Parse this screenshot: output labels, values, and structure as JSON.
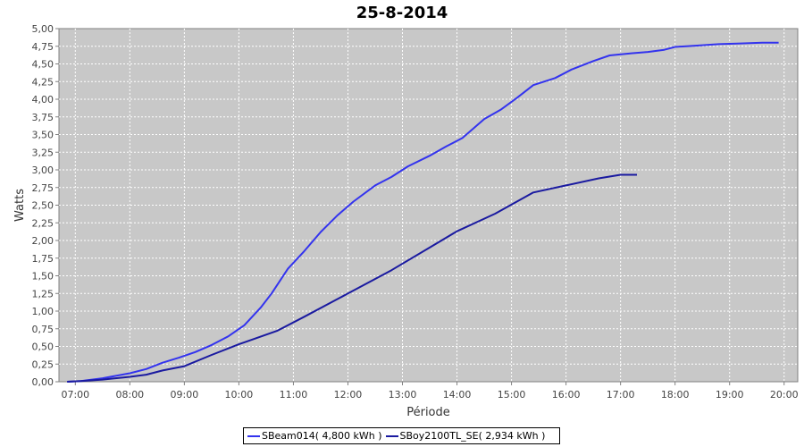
{
  "chart_data": {
    "type": "line",
    "title": "25-8-2014",
    "xlabel": "Période",
    "ylabel": "Watts",
    "x_ticks": [
      "07:00",
      "08:00",
      "09:00",
      "10:00",
      "11:00",
      "12:00",
      "13:00",
      "14:00",
      "15:00",
      "16:00",
      "17:00",
      "18:00",
      "19:00",
      "20:00"
    ],
    "y_ticks": [
      "0,00",
      "0,25",
      "0,50",
      "0,75",
      "1,00",
      "1,25",
      "1,50",
      "1,75",
      "2,00",
      "2,25",
      "2,50",
      "2,75",
      "3,00",
      "3,25",
      "3,50",
      "3,75",
      "4,00",
      "4,25",
      "4,50",
      "4,75",
      "5,00"
    ],
    "xlim_hours": [
      6.7,
      20.25
    ],
    "ylim": [
      0,
      5
    ],
    "grid": true,
    "legend_position": "bottom",
    "plot_background": "#c8c8c8",
    "series": [
      {
        "name": "SBeam014",
        "legend_label": "SBeam014( 4,800 kWh )",
        "color": "#3333ee",
        "x": [
          6.85,
          7.1,
          7.5,
          8.0,
          8.3,
          8.6,
          8.9,
          9.2,
          9.5,
          9.8,
          10.1,
          10.4,
          10.6,
          10.9,
          11.2,
          11.5,
          11.8,
          12.1,
          12.5,
          12.8,
          13.1,
          13.5,
          13.8,
          14.1,
          14.5,
          14.8,
          15.1,
          15.4,
          15.8,
          16.1,
          16.5,
          16.8,
          17.2,
          17.5,
          17.8,
          18.0,
          18.4,
          18.8,
          19.2,
          19.6,
          19.9
        ],
        "y": [
          0.0,
          0.01,
          0.05,
          0.12,
          0.18,
          0.27,
          0.34,
          0.42,
          0.52,
          0.64,
          0.8,
          1.05,
          1.25,
          1.6,
          1.85,
          2.12,
          2.35,
          2.55,
          2.78,
          2.9,
          3.05,
          3.2,
          3.33,
          3.45,
          3.72,
          3.85,
          4.02,
          4.2,
          4.3,
          4.42,
          4.54,
          4.62,
          4.65,
          4.67,
          4.7,
          4.74,
          4.76,
          4.78,
          4.79,
          4.8,
          4.8
        ],
        "total": "4,800 kWh"
      },
      {
        "name": "SBoy2100TL_SE",
        "legend_label": "SBoy2100TL_SE( 2,934 kWh )",
        "color": "#1a1aa0",
        "x": [
          6.85,
          7.1,
          7.5,
          8.0,
          8.3,
          8.6,
          9.0,
          9.5,
          10.0,
          10.7,
          11.2,
          12.0,
          12.8,
          13.5,
          14.0,
          14.7,
          15.4,
          16.0,
          16.6,
          17.0,
          17.3
        ],
        "y": [
          0.0,
          0.01,
          0.03,
          0.07,
          0.1,
          0.16,
          0.22,
          0.38,
          0.53,
          0.72,
          0.92,
          1.25,
          1.58,
          1.9,
          2.13,
          2.38,
          2.68,
          2.78,
          2.88,
          2.93,
          2.93
        ],
        "total": "2,934 kWh"
      }
    ]
  }
}
